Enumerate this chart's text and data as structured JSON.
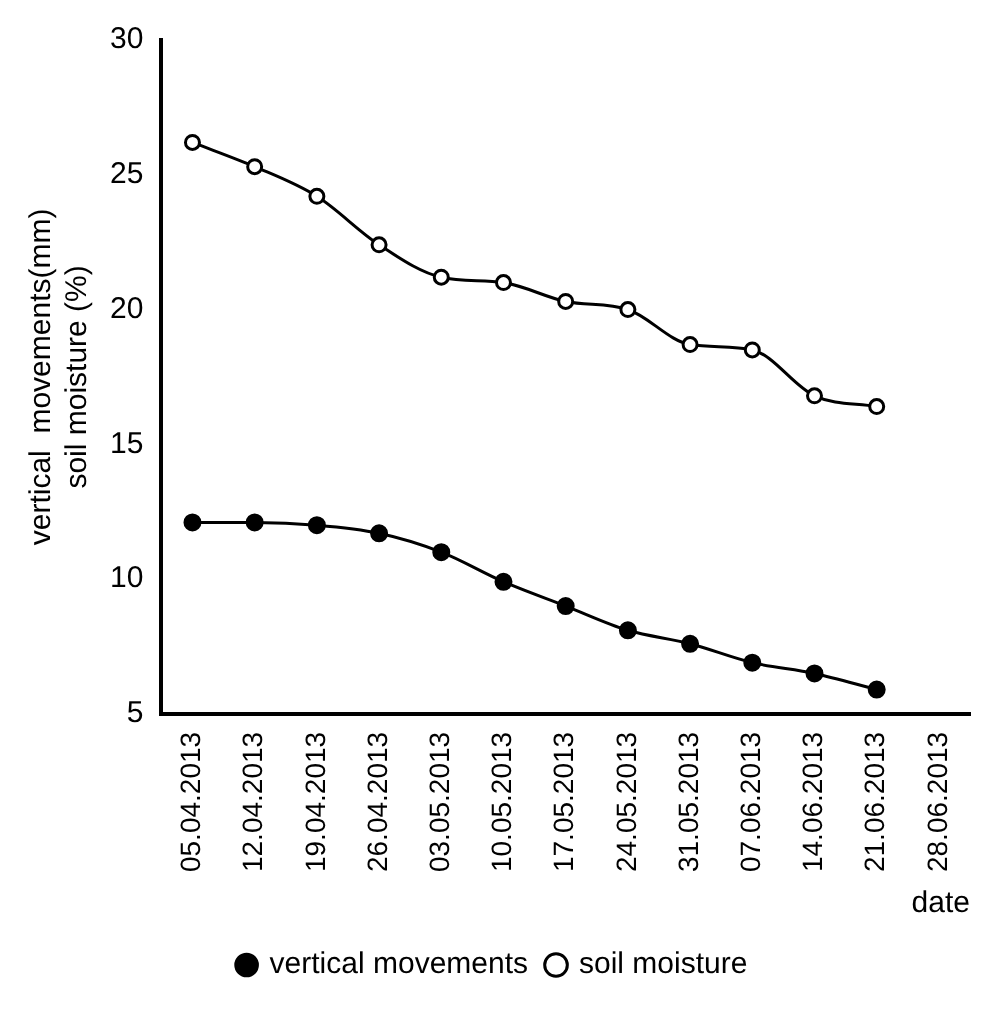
{
  "chart_data": {
    "type": "line",
    "xlabel": "date",
    "ylabel": "vertical  movements(mm)\nsoil moisture (%)",
    "categories": [
      "05.04.2013",
      "12.04.2013",
      "19.04.2013",
      "26.04.2013",
      "03.05.2013",
      "10.05.2013",
      "17.05.2013",
      "24.05.2013",
      "31.05.2013",
      "07.06.2013",
      "14.06.2013",
      "21.06.2013",
      "28.06.2013"
    ],
    "series": [
      {
        "name": "vertical movements",
        "color": "#000000",
        "marker": "circle",
        "values": [
          12.1,
          12.1,
          12.0,
          11.7,
          11.0,
          9.9,
          9.0,
          8.1,
          7.6,
          6.9,
          6.5,
          5.9,
          null
        ]
      },
      {
        "name": "soil moisture",
        "color": "#000000",
        "marker": "circle",
        "values": [
          26.2,
          25.3,
          24.2,
          22.4,
          21.2,
          21.0,
          20.3,
          20.0,
          18.7,
          18.5,
          16.8,
          16.4,
          null
        ]
      }
    ],
    "ylim": [
      5,
      30
    ],
    "yticks": [
      5,
      10,
      15,
      20,
      25,
      30
    ],
    "grid": false,
    "legend": "bottom"
  }
}
